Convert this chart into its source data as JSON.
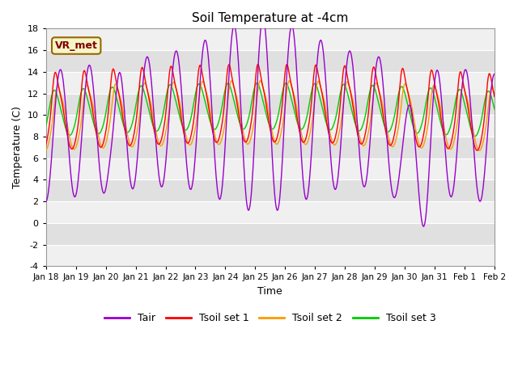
{
  "title": "Soil Temperature at -4cm",
  "xlabel": "Time",
  "ylabel": "Temperature (C)",
  "ylim": [
    -4,
    18
  ],
  "yticks": [
    -4,
    -2,
    0,
    2,
    4,
    6,
    8,
    10,
    12,
    14,
    16,
    18
  ],
  "xtick_labels": [
    "Jan 18",
    "Jan 19",
    "Jan 20",
    "Jan 21",
    "Jan 22",
    "Jan 23",
    "Jan 24",
    "Jan 25",
    "Jan 26",
    "Jan 27",
    "Jan 28",
    "Jan 29",
    "Jan 30",
    "Jan 31",
    "Feb 1",
    "Feb 2"
  ],
  "bg_color": "#ffffff",
  "plot_bg_color_light": "#f0f0f0",
  "plot_bg_color_dark": "#e0e0e0",
  "grid_color": "#ffffff",
  "line_colors": {
    "Tair": "#9900cc",
    "Tsoil1": "#ff0000",
    "Tsoil2": "#ff9900",
    "Tsoil3": "#00cc00"
  },
  "line_width": 1.0,
  "annotation_text": "VR_met",
  "annotation_color": "#800000",
  "annotation_bg": "#f5f5c8",
  "annotation_border": "#996600"
}
